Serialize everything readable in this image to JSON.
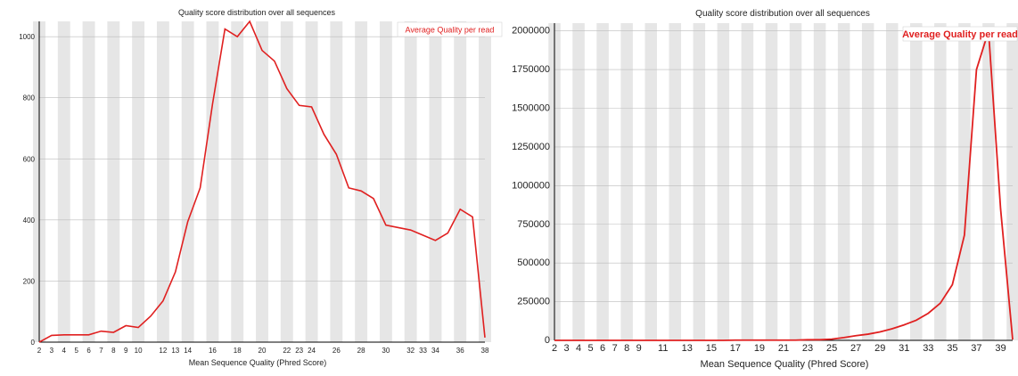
{
  "colors": {
    "line": "#e02020",
    "band": "#e6e6e6",
    "grid": "#bcbcbc",
    "axis": "#000000"
  },
  "chart_data": [
    {
      "type": "line",
      "title": "Quality score distribution over all sequences",
      "xlabel": "Mean Sequence Quality (Phred Score)",
      "ylabel": "",
      "legend": {
        "position": "top-right",
        "entries": [
          "Average Quality per read"
        ]
      },
      "grid": true,
      "xlim": [
        2,
        38
      ],
      "ylim": [
        0,
        1050
      ],
      "x_ticks": [
        "2",
        "3",
        "4",
        "5",
        "6",
        "7",
        "8",
        "9",
        "10",
        "12",
        "13",
        "14",
        "16",
        "18",
        "20",
        "22",
        "23",
        "24",
        "26",
        "28",
        "30",
        "32",
        "33",
        "34",
        "36",
        "38"
      ],
      "y_ticks": [
        "0",
        "200",
        "400",
        "600",
        "800",
        "1000"
      ],
      "series": [
        {
          "name": "Average Quality per read",
          "x": [
            2,
            3,
            4,
            5,
            6,
            7,
            8,
            9,
            10,
            11,
            12,
            13,
            14,
            15,
            16,
            17,
            18,
            19,
            20,
            21,
            22,
            23,
            24,
            25,
            26,
            27,
            28,
            29,
            30,
            31,
            32,
            33,
            34,
            35,
            36,
            37,
            38
          ],
          "y": [
            0,
            22,
            24,
            24,
            24,
            36,
            32,
            54,
            48,
            85,
            135,
            230,
            395,
            505,
            780,
            1025,
            1000,
            1050,
            955,
            920,
            830,
            775,
            770,
            680,
            615,
            505,
            495,
            470,
            383,
            375,
            367,
            350,
            333,
            357,
            435,
            410,
            15
          ]
        }
      ]
    },
    {
      "type": "line",
      "title": "Quality score distribution over all sequences",
      "xlabel": "Mean Sequence Quality (Phred Score)",
      "ylabel": "",
      "legend": {
        "position": "top-right",
        "entries": [
          "Average Quality per read"
        ]
      },
      "grid": true,
      "xlim": [
        2,
        40
      ],
      "ylim": [
        0,
        2050000
      ],
      "x_ticks": [
        "2",
        "3",
        "4",
        "5",
        "6",
        "7",
        "8",
        "9",
        "11",
        "13",
        "15",
        "17",
        "19",
        "21",
        "23",
        "25",
        "27",
        "29",
        "31",
        "33",
        "35",
        "37",
        "39"
      ],
      "y_ticks": [
        "0",
        "250000",
        "500000",
        "750000",
        "1000000",
        "1250000",
        "1500000",
        "1750000",
        "2000000"
      ],
      "series": [
        {
          "name": "Average Quality per read",
          "x": [
            2,
            3,
            4,
            5,
            6,
            7,
            8,
            9,
            10,
            11,
            12,
            13,
            14,
            15,
            16,
            17,
            18,
            19,
            20,
            21,
            22,
            23,
            24,
            25,
            26,
            27,
            28,
            29,
            30,
            31,
            32,
            33,
            34,
            35,
            36,
            37,
            38,
            39,
            40
          ],
          "y": [
            0,
            0,
            0,
            0,
            0,
            0,
            0,
            0,
            0,
            0,
            0,
            0,
            0,
            0,
            0,
            1500,
            1500,
            1500,
            1500,
            1500,
            1500,
            4000,
            4000,
            8000,
            18000,
            30000,
            40000,
            55000,
            75000,
            100000,
            130000,
            175000,
            240000,
            360000,
            680000,
            1750000,
            2000000,
            850000,
            5000
          ]
        }
      ]
    }
  ]
}
